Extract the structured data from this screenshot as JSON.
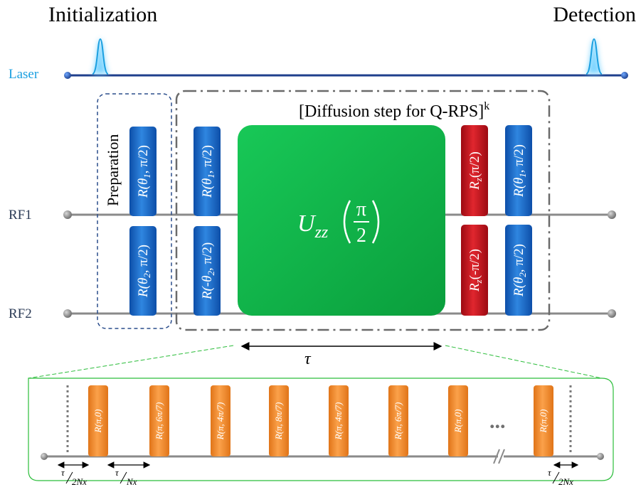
{
  "stages": {
    "initialization": "Initialization",
    "detection": "Detection"
  },
  "channels": {
    "laser": "Laser",
    "rf1": "RF1",
    "rf2": "RF2"
  },
  "boxes": {
    "preparation": "Preparation",
    "diffusion": "[Diffusion step for Q-RPS]",
    "diffusion_power": "k"
  },
  "pulses": {
    "prep_rf1": {
      "pre": "R(θ",
      "sub": "1",
      "post": ", π/2)"
    },
    "prep_rf2": {
      "pre": "R(θ",
      "sub": "2",
      "post": ", π/2)"
    },
    "d1_rf1": {
      "pre": "R(θ",
      "sub": "1",
      "post": ", π/2)"
    },
    "d1_rf2": {
      "pre": "R(-θ",
      "sub": "2",
      "post": ", π/2)"
    },
    "rz_rf1": {
      "pre": "R",
      "sub": "z",
      "post": "(π/2)"
    },
    "rz_rf2": {
      "pre": "R",
      "sub": "z",
      "post": "(-π/2)"
    },
    "d2_rf1": {
      "pre": "R(θ",
      "sub": "1",
      "post": ", π/2)"
    },
    "d2_rf2": {
      "pre": "R(θ",
      "sub": "2",
      "post": ", π/2)"
    }
  },
  "uzz": {
    "symbol": "U",
    "sub": "zz",
    "numerator": "π",
    "denominator": "2"
  },
  "tau": "τ",
  "sequence": {
    "pulses": [
      "R(π,0)",
      "R(π, 6π/7)",
      "R(π, 4π/7)",
      "R(π, 8π/7)",
      "R(π, 4π/7)",
      "R(π, 6π/7)",
      "R(π,0)",
      "R(π,0)"
    ],
    "ellipsis": "...",
    "spacing_first": {
      "num": "τ",
      "den": "2Nx"
    },
    "spacing_mid": {
      "num": "τ",
      "den": "Nx"
    },
    "spacing_last": {
      "num": "τ",
      "den": "2Nx"
    }
  },
  "colors": {
    "laser": "#1a9fe0",
    "line": "#8a8a8a",
    "blue_pulse": "#1565c8",
    "red_pulse": "#c8141e",
    "green_gate": "#10b84a",
    "orange_pulse": "#f28c28"
  }
}
